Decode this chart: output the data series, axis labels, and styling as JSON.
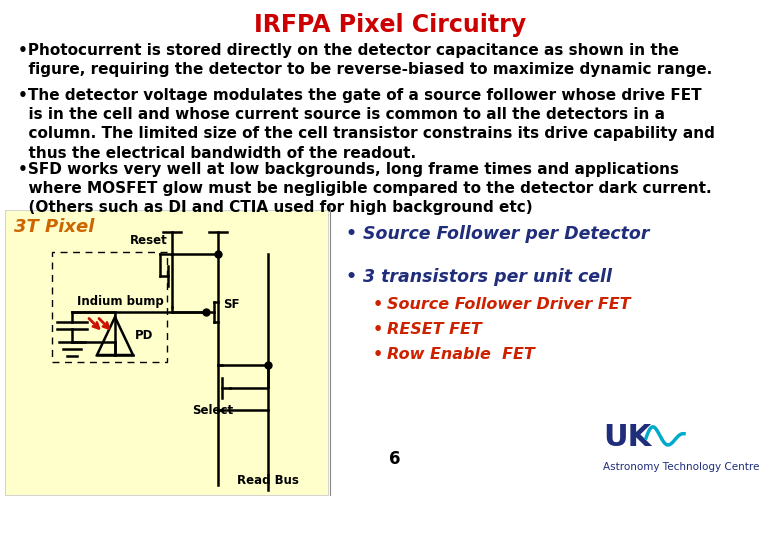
{
  "title": "IRFPA Pixel Circuitry",
  "title_color": "#CC0000",
  "bg_color": "#FFFFFF",
  "yellow_bg": "#FFFFCC",
  "para1_line1": "•Photocurrent is stored directly on the detector capacitance as shown in the",
  "para1_line2": "  figure, requiring the detector to be reverse-biased to maximize dynamic range.",
  "para2_line1": "•The detector voltage modulates the gate of a source follower whose drive FET",
  "para2_line2": "  is in the cell and whose current source is common to all the detectors in a",
  "para2_line3": "  column. The limited size of the cell transistor constrains its drive capability and",
  "para2_line4": "  thus the electrical bandwidth of the readout.",
  "para3_line1": "•SFD works very well at low backgrounds, long frame times and applications",
  "para3_line2": "  where MOSFET glow must be negligible compared to the detector dark current.",
  "para3_line3": "  (Others such as DI and CTIA used for high background etc)",
  "pixel_label": "3T Pixel",
  "pixel_label_color": "#CC6600",
  "reset_label": "Reset",
  "indium_label": "Indium bump",
  "sf_label": "SF",
  "pd_label": "PD",
  "select_label": "Select",
  "readbus_label": "Read Bus",
  "b1": "Source Follower per Detector",
  "b2": "3 transistors per unit cell",
  "b2a": "Source Follower Driver FET",
  "b2b": "RESET FET",
  "b2c": "Row Enable  FET",
  "bullet_header_color": "#1F2D7B",
  "bullet_sub_color": "#CC2200",
  "page_num": "6",
  "uk_color": "#1F2D7B",
  "wave_color": "#00AACC",
  "font_size_body": 11.0,
  "font_size_circuit": 8.5,
  "font_size_bullet_h": 12.5,
  "font_size_bullet_s": 11.5,
  "lw": 1.8
}
